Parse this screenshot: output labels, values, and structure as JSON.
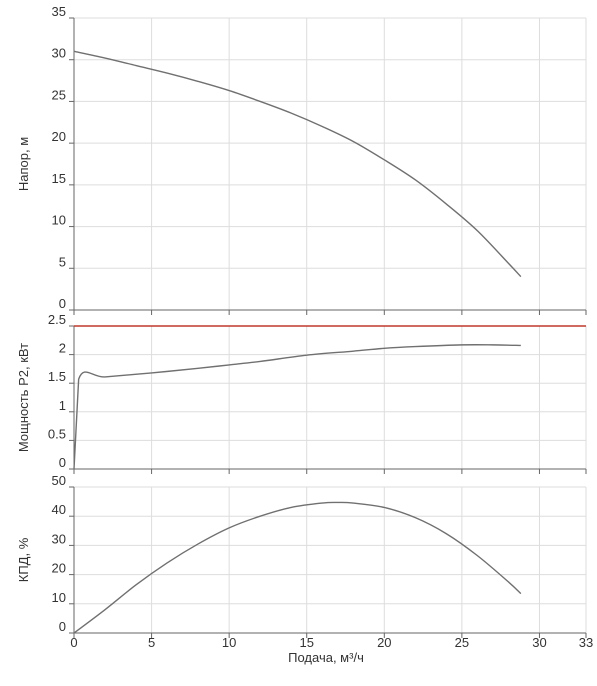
{
  "chart_data": [
    {
      "type": "line",
      "ylabel": "Напор, м",
      "ylim": [
        0,
        35
      ],
      "yticks": [
        "0",
        "5",
        "10",
        "15",
        "20",
        "25",
        "30",
        "35"
      ],
      "xlim": [
        0,
        33
      ],
      "grid": true,
      "series": [
        {
          "color": "#707070",
          "x": [
            0,
            2,
            4,
            6,
            8,
            10,
            12,
            14,
            16,
            18,
            20,
            22,
            24,
            26,
            28,
            28.8
          ],
          "y": [
            31.0,
            30.2,
            29.3,
            28.4,
            27.4,
            26.3,
            25.0,
            23.6,
            22.0,
            20.2,
            18.0,
            15.6,
            12.7,
            9.5,
            5.6,
            4.0
          ]
        }
      ]
    },
    {
      "type": "line",
      "ylabel": "Мощность P2, кВт",
      "ylim": [
        0,
        2.5
      ],
      "yticks": [
        "0",
        "0.5",
        "1",
        "1.5",
        "2",
        "2.5"
      ],
      "xlim": [
        0,
        33
      ],
      "grid": true,
      "reference_line": {
        "y": 2.5,
        "color": "#c0392b"
      },
      "series": [
        {
          "color": "#707070",
          "x": [
            0,
            0.3,
            2,
            5,
            8,
            10,
            12,
            15,
            18,
            20,
            22,
            25,
            27,
            28.8
          ],
          "y": [
            0,
            1.57,
            1.61,
            1.68,
            1.76,
            1.82,
            1.88,
            1.99,
            2.06,
            2.11,
            2.14,
            2.17,
            2.17,
            2.16
          ]
        }
      ]
    },
    {
      "type": "line",
      "ylabel": "КПД, %",
      "xlabel": "Подача, м³/ч",
      "ylim": [
        0,
        50
      ],
      "yticks": [
        "0",
        "10",
        "20",
        "30",
        "40",
        "50"
      ],
      "xlim": [
        0,
        33
      ],
      "xticks": [
        "0",
        "5",
        "10",
        "15",
        "20",
        "25",
        "30",
        "33"
      ],
      "grid": true,
      "series": [
        {
          "color": "#707070",
          "x": [
            0,
            2,
            4,
            6,
            8,
            10,
            12,
            14,
            16,
            17,
            18,
            20,
            22,
            24,
            26,
            28,
            28.8
          ],
          "y": [
            0,
            8,
            16.5,
            24,
            30.5,
            36,
            40,
            43,
            44.5,
            44.7,
            44.5,
            43,
            39.5,
            34,
            26.5,
            17.5,
            13.5
          ]
        }
      ]
    }
  ]
}
